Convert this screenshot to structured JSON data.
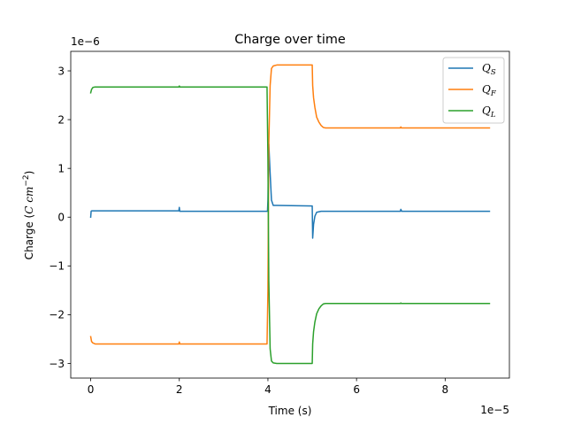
{
  "chart_data": {
    "type": "line",
    "title": "Charge over time",
    "xlabel": "Time (s)",
    "ylabel": "Charge ($C\\ cm^{-2}$)",
    "ylabel_parts": {
      "prefix": "Charge (",
      "unit": "C cm",
      "exp": "−2",
      "suffix": ")"
    },
    "x_offset_label": "1e−5",
    "y_offset_label": "1e−6",
    "x_scale": 1e-05,
    "y_scale": 1e-06,
    "xlim": [
      -0.45,
      9.45
    ],
    "ylim": [
      -3.3,
      3.4
    ],
    "x_ticks": [
      0,
      2,
      4,
      6,
      8
    ],
    "x_tick_labels": [
      "0",
      "2",
      "4",
      "6",
      "8"
    ],
    "y_ticks": [
      -3,
      -2,
      -1,
      0,
      1,
      2,
      3
    ],
    "y_tick_labels": [
      "−3",
      "−2",
      "−1",
      "0",
      "1",
      "2",
      "3"
    ],
    "grid": false,
    "legend_position": "top-right",
    "series": [
      {
        "name": "Q_S",
        "label_base": "Q",
        "label_sub": "S",
        "color": "#1f77b4",
        "x": [
          0,
          0.01,
          0.02,
          0.05,
          1.99,
          2.0,
          2.01,
          2.03,
          3.99,
          4.0,
          4.02,
          4.05,
          4.08,
          4.12,
          4.2,
          5.0,
          5.01,
          5.03,
          5.06,
          5.1,
          5.2,
          5.3,
          6.99,
          7.0,
          7.02,
          9.0
        ],
        "y": [
          0.0,
          0.12,
          0.13,
          0.13,
          0.13,
          0.2,
          0.12,
          0.12,
          0.12,
          0.35,
          1.5,
          0.9,
          0.35,
          0.24,
          0.24,
          0.23,
          -0.43,
          -0.15,
          0.02,
          0.1,
          0.12,
          0.12,
          0.12,
          0.16,
          0.12,
          0.12
        ]
      },
      {
        "name": "Q_F",
        "label_base": "Q",
        "label_sub": "F",
        "color": "#ff7f0e",
        "x": [
          0,
          0.02,
          0.05,
          0.1,
          1.99,
          2.0,
          2.01,
          3.98,
          4.0,
          4.02,
          4.05,
          4.08,
          4.12,
          4.2,
          5.0,
          5.01,
          5.03,
          5.06,
          5.1,
          5.15,
          5.2,
          5.25,
          5.3,
          6.99,
          7.0,
          7.01,
          9.0
        ],
        "y": [
          -2.45,
          -2.55,
          -2.58,
          -2.6,
          -2.6,
          -2.56,
          -2.6,
          -2.6,
          -1.5,
          1.5,
          2.7,
          3.05,
          3.1,
          3.12,
          3.12,
          2.7,
          2.45,
          2.25,
          2.05,
          1.95,
          1.88,
          1.84,
          1.83,
          1.83,
          1.85,
          1.83,
          1.83
        ]
      },
      {
        "name": "Q_L",
        "label_base": "Q",
        "label_sub": "L",
        "color": "#2ca02c",
        "x": [
          0,
          0.02,
          0.05,
          0.1,
          1.99,
          2.0,
          2.01,
          3.98,
          4.0,
          4.02,
          4.05,
          4.08,
          4.12,
          4.2,
          5.0,
          5.01,
          5.03,
          5.06,
          5.1,
          5.15,
          5.2,
          5.25,
          5.3,
          6.99,
          7.0,
          7.01,
          9.0
        ],
        "y": [
          2.55,
          2.62,
          2.66,
          2.67,
          2.67,
          2.69,
          2.67,
          2.67,
          1.2,
          -1.3,
          -2.7,
          -2.95,
          -2.99,
          -3.0,
          -3.0,
          -2.6,
          -2.35,
          -2.15,
          -1.98,
          -1.88,
          -1.82,
          -1.78,
          -1.77,
          -1.77,
          -1.76,
          -1.77,
          -1.77
        ]
      }
    ]
  }
}
